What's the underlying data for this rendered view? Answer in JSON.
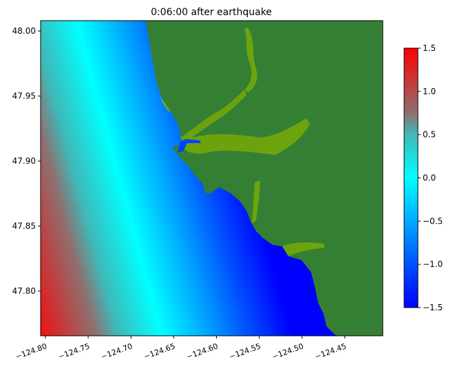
{
  "chart_data": {
    "type": "heatmap",
    "title": "0:06:00 after earthquake",
    "xlabel": "",
    "ylabel": "",
    "xlim": [
      -124.8056,
      -124.4056
    ],
    "ylim": [
      47.7656,
      48.008
    ],
    "x_ticks": [
      -124.8,
      -124.75,
      -124.7,
      -124.65,
      -124.6,
      -124.55,
      -124.5,
      -124.45
    ],
    "x_tick_labels": [
      "−124.80",
      "−124.75",
      "−124.70",
      "−124.65",
      "−124.60",
      "−124.55",
      "−124.50",
      "−124.45"
    ],
    "y_ticks": [
      47.8,
      47.85,
      47.9,
      47.95,
      48.0
    ],
    "y_tick_labels": [
      "47.80",
      "47.85",
      "47.90",
      "47.95",
      "48.00"
    ],
    "colorbar": {
      "range": [
        -1.5,
        1.5
      ],
      "ticks": [
        1.5,
        1.0,
        0.5,
        0.0,
        -0.5,
        -1.0,
        -1.5
      ],
      "tick_labels": [
        "1.5",
        "1.0",
        "0.5",
        "0.0",
        "−0.5",
        "−1.0",
        "−1.5"
      ]
    },
    "colors": {
      "land": "#357f35",
      "inundation": "#7fb000",
      "high": "#ff0000",
      "mid_high": "#8f7070",
      "turquoise": "#40b8b8",
      "zero": "#00ffff",
      "mid_low": "#00aaff",
      "low_mid": "#0050ff",
      "low": "#0000ff"
    },
    "grid": false
  }
}
